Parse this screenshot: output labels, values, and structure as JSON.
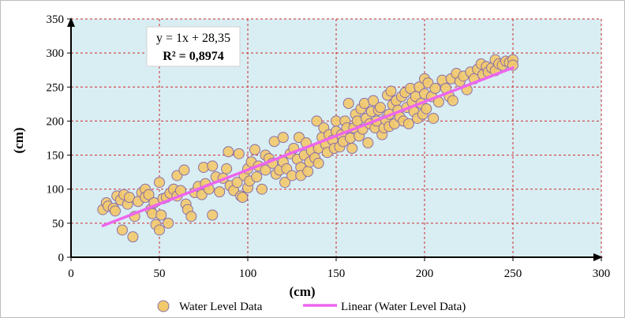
{
  "chart_data": {
    "type": "scatter",
    "xlabel": "(cm)",
    "ylabel": "(cm)",
    "xlim": [
      0,
      300
    ],
    "ylim": [
      0,
      350
    ],
    "x_ticks": [
      "0",
      "50",
      "100",
      "150",
      "200",
      "250",
      "300"
    ],
    "y_ticks": [
      "0",
      "50",
      "100",
      "150",
      "200",
      "250",
      "300",
      "350"
    ],
    "grid": true,
    "legend_position": "bottom",
    "plot_background": "#d9eef3",
    "grid_color": "#cc2a2a",
    "marker_fill": "#f2c96b",
    "marker_edge": "#8a6fa8",
    "trend_color": "#ee66ee",
    "equation": "y = 1x + 28,35",
    "r_squared": "R² = 0,8974",
    "trendline": {
      "slope": 1,
      "intercept": 28.35,
      "x_start": 18,
      "x_end": 250
    },
    "series": [
      {
        "name": "Water Level Data",
        "points": [
          [
            18,
            70
          ],
          [
            20,
            80
          ],
          [
            21,
            75
          ],
          [
            24,
            72
          ],
          [
            25,
            68
          ],
          [
            26,
            90
          ],
          [
            28,
            84
          ],
          [
            29,
            40
          ],
          [
            30,
            92
          ],
          [
            32,
            78
          ],
          [
            33,
            88
          ],
          [
            35,
            30
          ],
          [
            36,
            60
          ],
          [
            38,
            82
          ],
          [
            40,
            95
          ],
          [
            42,
            100
          ],
          [
            42,
            88
          ],
          [
            44,
            92
          ],
          [
            45,
            70
          ],
          [
            46,
            64
          ],
          [
            47,
            80
          ],
          [
            48,
            48
          ],
          [
            50,
            40
          ],
          [
            50,
            110
          ],
          [
            51,
            62
          ],
          [
            52,
            86
          ],
          [
            54,
            88
          ],
          [
            55,
            50
          ],
          [
            56,
            94
          ],
          [
            58,
            100
          ],
          [
            60,
            120
          ],
          [
            60,
            90
          ],
          [
            62,
            98
          ],
          [
            64,
            128
          ],
          [
            65,
            78
          ],
          [
            66,
            70
          ],
          [
            68,
            60
          ],
          [
            70,
            95
          ],
          [
            72,
            104
          ],
          [
            74,
            92
          ],
          [
            75,
            132
          ],
          [
            76,
            108
          ],
          [
            78,
            100
          ],
          [
            80,
            62
          ],
          [
            80,
            134
          ],
          [
            82,
            118
          ],
          [
            84,
            96
          ],
          [
            86,
            116
          ],
          [
            88,
            130
          ],
          [
            89,
            155
          ],
          [
            90,
            105
          ],
          [
            92,
            98
          ],
          [
            94,
            110
          ],
          [
            95,
            152
          ],
          [
            96,
            90
          ],
          [
            97,
            88
          ],
          [
            98,
            120
          ],
          [
            100,
            102
          ],
          [
            100,
            130
          ],
          [
            101,
            112
          ],
          [
            102,
            140
          ],
          [
            104,
            158
          ],
          [
            105,
            118
          ],
          [
            106,
            134
          ],
          [
            108,
            100
          ],
          [
            110,
            150
          ],
          [
            110,
            128
          ],
          [
            112,
            145
          ],
          [
            114,
            138
          ],
          [
            115,
            170
          ],
          [
            116,
            122
          ],
          [
            118,
            128
          ],
          [
            120,
            176
          ],
          [
            120,
            140
          ],
          [
            121,
            110
          ],
          [
            122,
            130
          ],
          [
            124,
            152
          ],
          [
            125,
            120
          ],
          [
            126,
            160
          ],
          [
            128,
            144
          ],
          [
            129,
            176
          ],
          [
            130,
            132
          ],
          [
            130,
            120
          ],
          [
            132,
            150
          ],
          [
            133,
            168
          ],
          [
            134,
            126
          ],
          [
            135,
            140
          ],
          [
            136,
            156
          ],
          [
            138,
            146
          ],
          [
            139,
            200
          ],
          [
            140,
            160
          ],
          [
            140,
            138
          ],
          [
            142,
            176
          ],
          [
            143,
            190
          ],
          [
            144,
            166
          ],
          [
            145,
            154
          ],
          [
            146,
            180
          ],
          [
            148,
            172
          ],
          [
            149,
            160
          ],
          [
            150,
            200
          ],
          [
            150,
            185
          ],
          [
            152,
            162
          ],
          [
            153,
            180
          ],
          [
            154,
            170
          ],
          [
            155,
            200
          ],
          [
            156,
            190
          ],
          [
            157,
            226
          ],
          [
            158,
            175
          ],
          [
            159,
            160
          ],
          [
            160,
            190
          ],
          [
            161,
            210
          ],
          [
            162,
            200
          ],
          [
            163,
            178
          ],
          [
            164,
            218
          ],
          [
            165,
            188
          ],
          [
            166,
            226
          ],
          [
            167,
            204
          ],
          [
            168,
            168
          ],
          [
            169,
            196
          ],
          [
            170,
            214
          ],
          [
            171,
            230
          ],
          [
            172,
            190
          ],
          [
            173,
            200
          ],
          [
            174,
            216
          ],
          [
            175,
            220
          ],
          [
            176,
            180
          ],
          [
            177,
            190
          ],
          [
            178,
            202
          ],
          [
            179,
            238
          ],
          [
            180,
            210
          ],
          [
            180,
            192
          ],
          [
            181,
            244
          ],
          [
            182,
            224
          ],
          [
            183,
            196
          ],
          [
            184,
            230
          ],
          [
            185,
            216
          ],
          [
            186,
            206
          ],
          [
            187,
            236
          ],
          [
            188,
            200
          ],
          [
            189,
            242
          ],
          [
            190,
            220
          ],
          [
            191,
            196
          ],
          [
            192,
            248
          ],
          [
            193,
            228
          ],
          [
            194,
            214
          ],
          [
            195,
            236
          ],
          [
            196,
            204
          ],
          [
            197,
            250
          ],
          [
            198,
            226
          ],
          [
            199,
            210
          ],
          [
            200,
            262
          ],
          [
            200,
            240
          ],
          [
            201,
            218
          ],
          [
            202,
            256
          ],
          [
            204,
            236
          ],
          [
            205,
            204
          ],
          [
            206,
            248
          ],
          [
            208,
            228
          ],
          [
            210,
            260
          ],
          [
            212,
            248
          ],
          [
            214,
            236
          ],
          [
            215,
            262
          ],
          [
            216,
            230
          ],
          [
            218,
            270
          ],
          [
            220,
            258
          ],
          [
            222,
            266
          ],
          [
            224,
            246
          ],
          [
            226,
            272
          ],
          [
            228,
            262
          ],
          [
            230,
            276
          ],
          [
            232,
            284
          ],
          [
            233,
            268
          ],
          [
            235,
            280
          ],
          [
            236,
            272
          ],
          [
            238,
            278
          ],
          [
            240,
            274
          ],
          [
            240,
            290
          ],
          [
            242,
            284
          ],
          [
            244,
            282
          ],
          [
            246,
            288
          ],
          [
            248,
            286
          ],
          [
            250,
            290
          ],
          [
            250,
            282
          ]
        ]
      },
      {
        "name": "Linear (Water Level Data)"
      }
    ]
  }
}
